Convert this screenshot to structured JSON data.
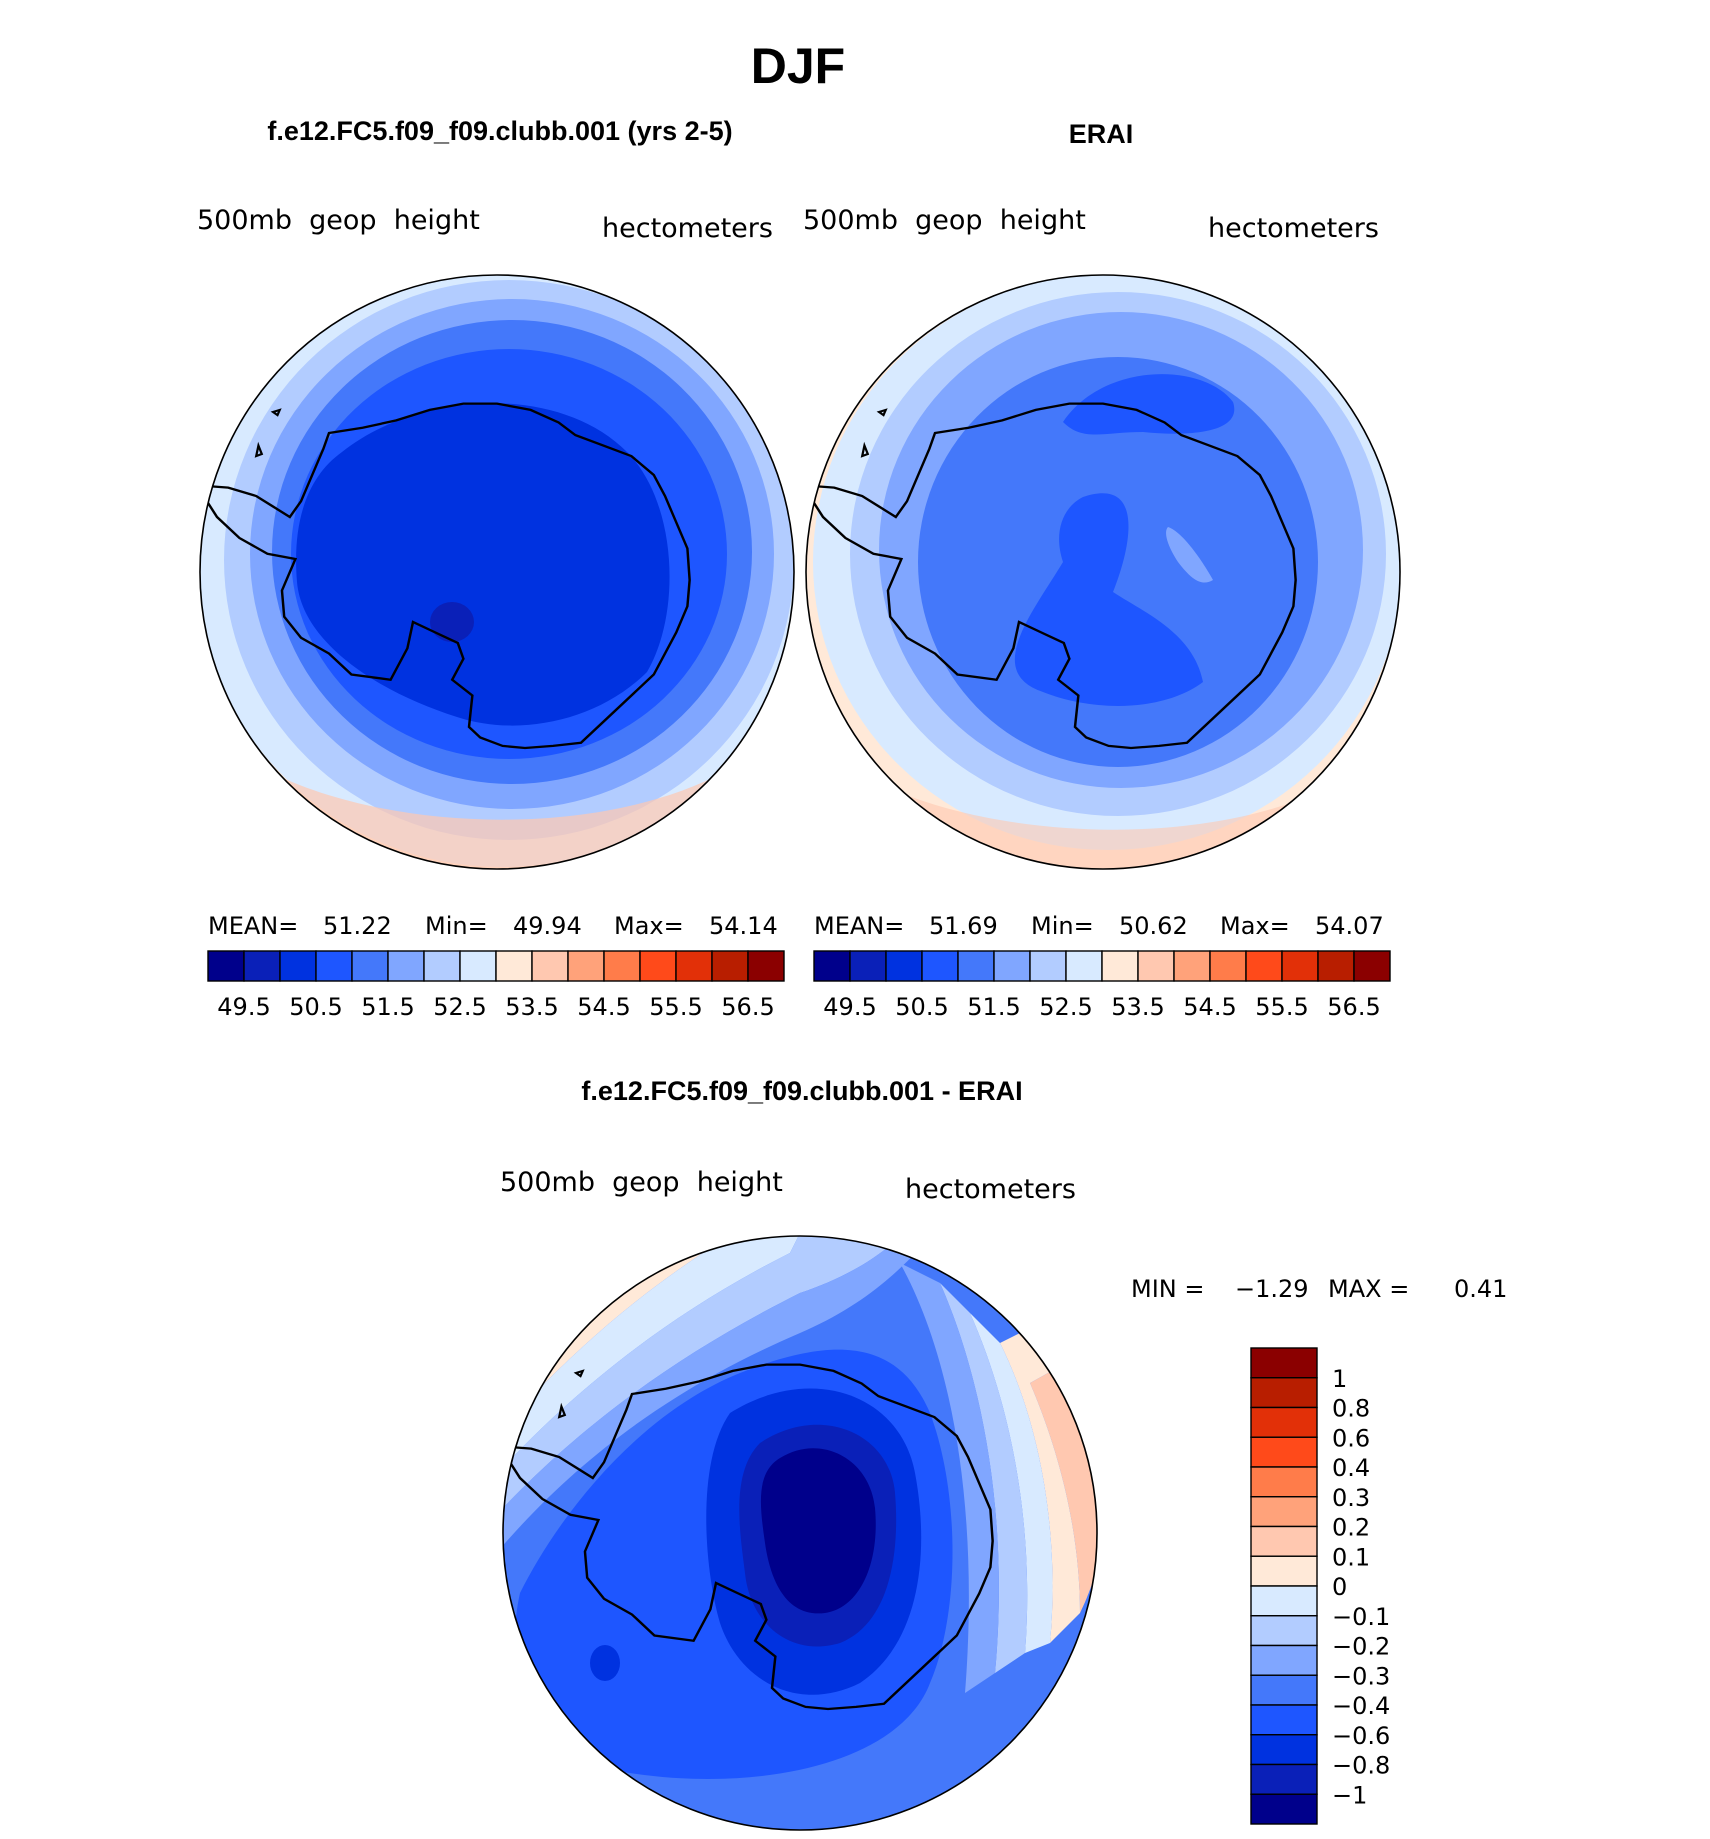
{
  "title": "DJF",
  "colors": {
    "pos_scale": [
      "#00008b",
      "#0a20b8",
      "#0032e0",
      "#1e56ff",
      "#4478fa",
      "#80a6ff",
      "#b2ccff",
      "#d8eaff",
      "#ffe9d8",
      "#ffc8b0",
      "#ffa27a",
      "#ff7c4a",
      "#ff4a1a",
      "#e23008",
      "#b81e00",
      "#8b0000"
    ],
    "diff_scale": [
      "#00008b",
      "#0a20b8",
      "#0032e0",
      "#1e56ff",
      "#4478fa",
      "#80a6ff",
      "#b2ccff",
      "#d8eaff",
      "#ffe9d8",
      "#ffc8b0",
      "#ffa27a",
      "#ff7c4a",
      "#ff4a1a",
      "#e23008",
      "#b81e00",
      "#8b0000"
    ],
    "coast": "#000000"
  },
  "chart_data": [
    {
      "id": "model",
      "type": "heatmap",
      "projection": "south-polar-stereographic",
      "title": "f.e12.FC5.f09_f09.clubb.001 (yrs 2-5)",
      "variable": "500mb  geop  height",
      "units": "hectometers",
      "stats": {
        "mean_label": "MEAN=",
        "mean": "51.22",
        "min_label": "Min=",
        "min": "49.94",
        "max_label": "Max=",
        "max": "54.14"
      },
      "color_levels": [
        49.5,
        50,
        50.5,
        51,
        51.5,
        52,
        52.5,
        53,
        53.5,
        54,
        54.5,
        55,
        55.5,
        56,
        56.5
      ],
      "tick_labels": [
        "49.5",
        "50.5",
        "51.5",
        "52.5",
        "53.5",
        "54.5",
        "55.5",
        "56.5"
      ]
    },
    {
      "id": "obs",
      "type": "heatmap",
      "projection": "south-polar-stereographic",
      "title": "ERAI",
      "variable": "500mb  geop  height",
      "units": "hectometers",
      "stats": {
        "mean_label": "MEAN=",
        "mean": "51.69",
        "min_label": "Min=",
        "min": "50.62",
        "max_label": "Max=",
        "max": "54.07"
      },
      "color_levels": [
        49.5,
        50,
        50.5,
        51,
        51.5,
        52,
        52.5,
        53,
        53.5,
        54,
        54.5,
        55,
        55.5,
        56,
        56.5
      ],
      "tick_labels": [
        "49.5",
        "50.5",
        "51.5",
        "52.5",
        "53.5",
        "54.5",
        "55.5",
        "56.5"
      ]
    },
    {
      "id": "diff",
      "type": "heatmap",
      "projection": "south-polar-stereographic",
      "title": "f.e12.FC5.f09_f09.clubb.001 - ERAI",
      "variable": "500mb  geop  height",
      "units": "hectometers",
      "stats": {
        "min_label": "MIN =",
        "min": "−1.29",
        "max_label": "MAX =",
        "max": "0.41"
      },
      "color_levels": [
        -1,
        -0.8,
        -0.6,
        -0.4,
        -0.3,
        -0.2,
        -0.1,
        0,
        0.1,
        0.2,
        0.3,
        0.4,
        0.6,
        0.8,
        1
      ],
      "tick_labels": [
        "1",
        "0.8",
        "0.6",
        "0.4",
        "0.3",
        "0.2",
        "0.1",
        "0",
        "−0.1",
        "−0.2",
        "−0.3",
        "−0.4",
        "−0.6",
        "−0.8",
        "−1"
      ]
    }
  ]
}
